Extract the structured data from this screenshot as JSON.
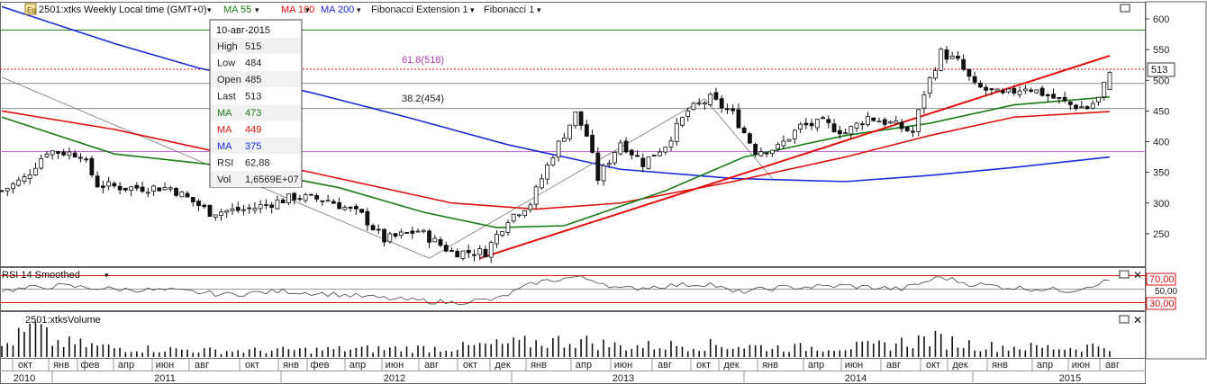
{
  "header": {
    "symbol": "2501:xtks Weekly Local time (GMT+0)",
    "indicators": [
      {
        "label": "MA 55",
        "color": "#1a7a1a"
      },
      {
        "label": "MA 100",
        "color": "#e01010"
      },
      {
        "label": "MA 200",
        "color": "#1a2ad8"
      },
      {
        "label": "Fibonacci Extension 1",
        "color": "#222222"
      },
      {
        "label": "Fibonacci 1",
        "color": "#222222"
      }
    ]
  },
  "tooltip": {
    "date": "10-авг-2015",
    "rows": [
      {
        "label": "High",
        "value": "515",
        "color": "#222222"
      },
      {
        "label": "Low",
        "value": "484",
        "color": "#222222"
      },
      {
        "label": "Open",
        "value": "485",
        "color": "#222222"
      },
      {
        "label": "Last",
        "value": "513",
        "color": "#222222"
      },
      {
        "label": "MA",
        "value": "473",
        "color": "#1a7a1a"
      },
      {
        "label": "MA",
        "value": "449",
        "color": "#e01010"
      },
      {
        "label": "MA",
        "value": "375",
        "color": "#1a2ad8"
      },
      {
        "label": "RSI",
        "value": "62,88",
        "color": "#222222"
      },
      {
        "label": "Vol",
        "value": "1,6569E+07",
        "color": "#222222"
      }
    ]
  },
  "fib_labels": [
    "61.8(518)",
    "38.2(454)"
  ],
  "last_price_label": "513",
  "rsi_title": "RSI 14 Smoothed",
  "rsi_levels": [
    "70,00",
    "50,00",
    "30,00"
  ],
  "volume_title": "2501:xtksVolume",
  "colors": {
    "ma55": "#1a7a1a",
    "ma100": "#e01010",
    "ma200": "#1a2ad8",
    "trend": "#e01010",
    "candle": "#111111"
  },
  "chart_data": {
    "type": "candlestick",
    "y_axis_ticks": [
      250,
      300,
      350,
      400,
      450,
      500,
      550,
      600
    ],
    "ylim": [
      200,
      625
    ],
    "x_month_labels": [
      "окт",
      "янв",
      "фев",
      "апр",
      "июн",
      "авг",
      "окт",
      "янв",
      "фев",
      "апр",
      "июн",
      "авг",
      "окт",
      "дек",
      "янв",
      "апр",
      "июн",
      "авг",
      "окт",
      "дек",
      "янв",
      "апр",
      "июн",
      "авг",
      "окт",
      "дек",
      "янв",
      "апр",
      "июн",
      "авг"
    ],
    "x_year_labels": [
      "2010",
      "2011",
      "2012",
      "2013",
      "2014",
      "2015"
    ],
    "price_anchors": [
      {
        "t": 0,
        "v": 320
      },
      {
        "t": 4,
        "v": 340
      },
      {
        "t": 8,
        "v": 385
      },
      {
        "t": 14,
        "v": 380
      },
      {
        "t": 17,
        "v": 330
      },
      {
        "t": 22,
        "v": 325
      },
      {
        "t": 30,
        "v": 325
      },
      {
        "t": 37,
        "v": 285
      },
      {
        "t": 44,
        "v": 290
      },
      {
        "t": 52,
        "v": 310
      },
      {
        "t": 58,
        "v": 305
      },
      {
        "t": 64,
        "v": 280
      },
      {
        "t": 68,
        "v": 240
      },
      {
        "t": 74,
        "v": 255
      },
      {
        "t": 80,
        "v": 220
      },
      {
        "t": 86,
        "v": 220
      },
      {
        "t": 90,
        "v": 275
      },
      {
        "t": 94,
        "v": 300
      },
      {
        "t": 98,
        "v": 380
      },
      {
        "t": 102,
        "v": 445
      },
      {
        "t": 104,
        "v": 410
      },
      {
        "t": 106,
        "v": 340
      },
      {
        "t": 110,
        "v": 400
      },
      {
        "t": 114,
        "v": 365
      },
      {
        "t": 118,
        "v": 395
      },
      {
        "t": 122,
        "v": 450
      },
      {
        "t": 126,
        "v": 470
      },
      {
        "t": 130,
        "v": 445
      },
      {
        "t": 134,
        "v": 385
      },
      {
        "t": 138,
        "v": 390
      },
      {
        "t": 142,
        "v": 425
      },
      {
        "t": 146,
        "v": 430
      },
      {
        "t": 150,
        "v": 415
      },
      {
        "t": 154,
        "v": 440
      },
      {
        "t": 158,
        "v": 430
      },
      {
        "t": 162,
        "v": 415
      },
      {
        "t": 164,
        "v": 480
      },
      {
        "t": 167,
        "v": 545
      },
      {
        "t": 170,
        "v": 530
      },
      {
        "t": 173,
        "v": 490
      },
      {
        "t": 178,
        "v": 475
      },
      {
        "t": 182,
        "v": 490
      },
      {
        "t": 186,
        "v": 475
      },
      {
        "t": 190,
        "v": 460
      },
      {
        "t": 193,
        "v": 455
      },
      {
        "t": 195,
        "v": 470
      },
      {
        "t": 197,
        "v": 513
      }
    ],
    "ma55": [
      [
        0,
        440
      ],
      [
        20,
        380
      ],
      [
        40,
        360
      ],
      [
        60,
        325
      ],
      [
        75,
        285
      ],
      [
        88,
        260
      ],
      [
        100,
        263
      ],
      [
        118,
        320
      ],
      [
        132,
        375
      ],
      [
        150,
        410
      ],
      [
        165,
        430
      ],
      [
        180,
        460
      ],
      [
        197,
        473
      ]
    ],
    "ma100": [
      [
        0,
        450
      ],
      [
        20,
        420
      ],
      [
        40,
        380
      ],
      [
        60,
        340
      ],
      [
        80,
        300
      ],
      [
        95,
        290
      ],
      [
        110,
        300
      ],
      [
        130,
        335
      ],
      [
        150,
        375
      ],
      [
        165,
        410
      ],
      [
        180,
        440
      ],
      [
        197,
        449
      ]
    ],
    "ma200": [
      [
        0,
        620
      ],
      [
        20,
        560
      ],
      [
        35,
        520
      ],
      [
        55,
        480
      ],
      [
        72,
        440
      ],
      [
        90,
        395
      ],
      [
        110,
        355
      ],
      [
        130,
        340
      ],
      [
        150,
        335
      ],
      [
        165,
        345
      ],
      [
        180,
        358
      ],
      [
        197,
        375
      ]
    ],
    "trendline": [
      [
        85,
        210
      ],
      [
        197,
        540
      ]
    ],
    "fib_extension_path": [
      [
        0,
        505
      ],
      [
        76,
        210
      ],
      [
        125,
        470
      ],
      [
        137,
        340
      ]
    ],
    "fib_levels": [
      {
        "label": "61.8(518)",
        "value": 518
      },
      {
        "label": "38.2(454)",
        "value": 454
      }
    ],
    "horizontal_lines": [
      {
        "value": 582,
        "color": "#1a7a1a"
      },
      {
        "value": 518,
        "color": "#e01010"
      },
      {
        "value": 454,
        "color": "#888888"
      },
      {
        "value": 384,
        "color": "#c36bd6"
      },
      {
        "value": 495,
        "color": "#888888"
      }
    ],
    "rsi_ylim": [
      20,
      80
    ],
    "rsi_anchors": [
      [
        0,
        48
      ],
      [
        10,
        55
      ],
      [
        20,
        50
      ],
      [
        30,
        48
      ],
      [
        40,
        42
      ],
      [
        50,
        47
      ],
      [
        60,
        42
      ],
      [
        70,
        35
      ],
      [
        80,
        30
      ],
      [
        88,
        35
      ],
      [
        95,
        60
      ],
      [
        102,
        68
      ],
      [
        106,
        62
      ],
      [
        110,
        50
      ],
      [
        118,
        55
      ],
      [
        126,
        58
      ],
      [
        130,
        45
      ],
      [
        138,
        52
      ],
      [
        150,
        55
      ],
      [
        160,
        50
      ],
      [
        167,
        68
      ],
      [
        172,
        58
      ],
      [
        180,
        52
      ],
      [
        190,
        48
      ],
      [
        197,
        62.88
      ]
    ],
    "volume_anchors": [
      [
        0,
        0.35
      ],
      [
        6,
        0.95
      ],
      [
        9,
        0.5
      ],
      [
        20,
        0.3
      ],
      [
        40,
        0.2
      ],
      [
        60,
        0.25
      ],
      [
        80,
        0.3
      ],
      [
        92,
        0.45
      ],
      [
        102,
        0.55
      ],
      [
        110,
        0.35
      ],
      [
        125,
        0.4
      ],
      [
        140,
        0.3
      ],
      [
        155,
        0.35
      ],
      [
        165,
        0.6
      ],
      [
        175,
        0.35
      ],
      [
        190,
        0.3
      ],
      [
        197,
        0.4
      ]
    ]
  }
}
